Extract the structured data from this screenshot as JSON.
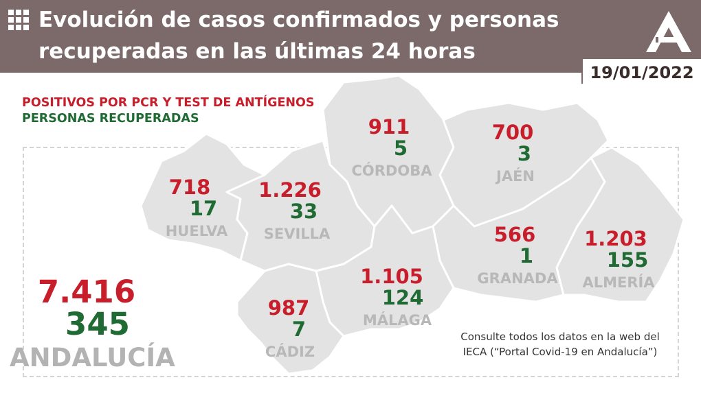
{
  "header": {
    "title_line1": "Evolución de casos confirmados y personas",
    "title_line2": "recuperadas en las últimas 24 horas",
    "date": "19/01/2022",
    "icons": [
      "grid-icon",
      "junta-andalucia-logo"
    ]
  },
  "legend": {
    "positives_label": "POSITIVOS POR PCR Y TEST DE ANTÍGENOS",
    "recovered_label": "PERSONAS RECUPERADAS"
  },
  "provinces": [
    {
      "name": "HUELVA",
      "positives": "718",
      "recovered": "17"
    },
    {
      "name": "SEVILLA",
      "positives": "1.226",
      "recovered": "33"
    },
    {
      "name": "CÓRDOBA",
      "positives": "911",
      "recovered": "5"
    },
    {
      "name": "JAÉN",
      "positives": "700",
      "recovered": "3"
    },
    {
      "name": "GRANADA",
      "positives": "566",
      "recovered": "1"
    },
    {
      "name": "ALMERÍA",
      "positives": "1.203",
      "recovered": "155"
    },
    {
      "name": "MÁLAGA",
      "positives": "1.105",
      "recovered": "124"
    },
    {
      "name": "CÁDIZ",
      "positives": "987",
      "recovered": "7"
    }
  ],
  "total": {
    "name": "ANDALUCÍA",
    "positives": "7.416",
    "recovered": "345"
  },
  "footer": {
    "note_line1": "Consulte todos los datos en la web del",
    "note_line2": "IECA (“Portal Covid-19 en Andalucía”)"
  },
  "colors": {
    "header_bg": "#7c6a6a",
    "positives": "#c81d2a",
    "recovered": "#1f6b33",
    "map_fill": "#e3e3e3",
    "map_border": "#ffffff",
    "label_gray": "#b8b8b8"
  }
}
